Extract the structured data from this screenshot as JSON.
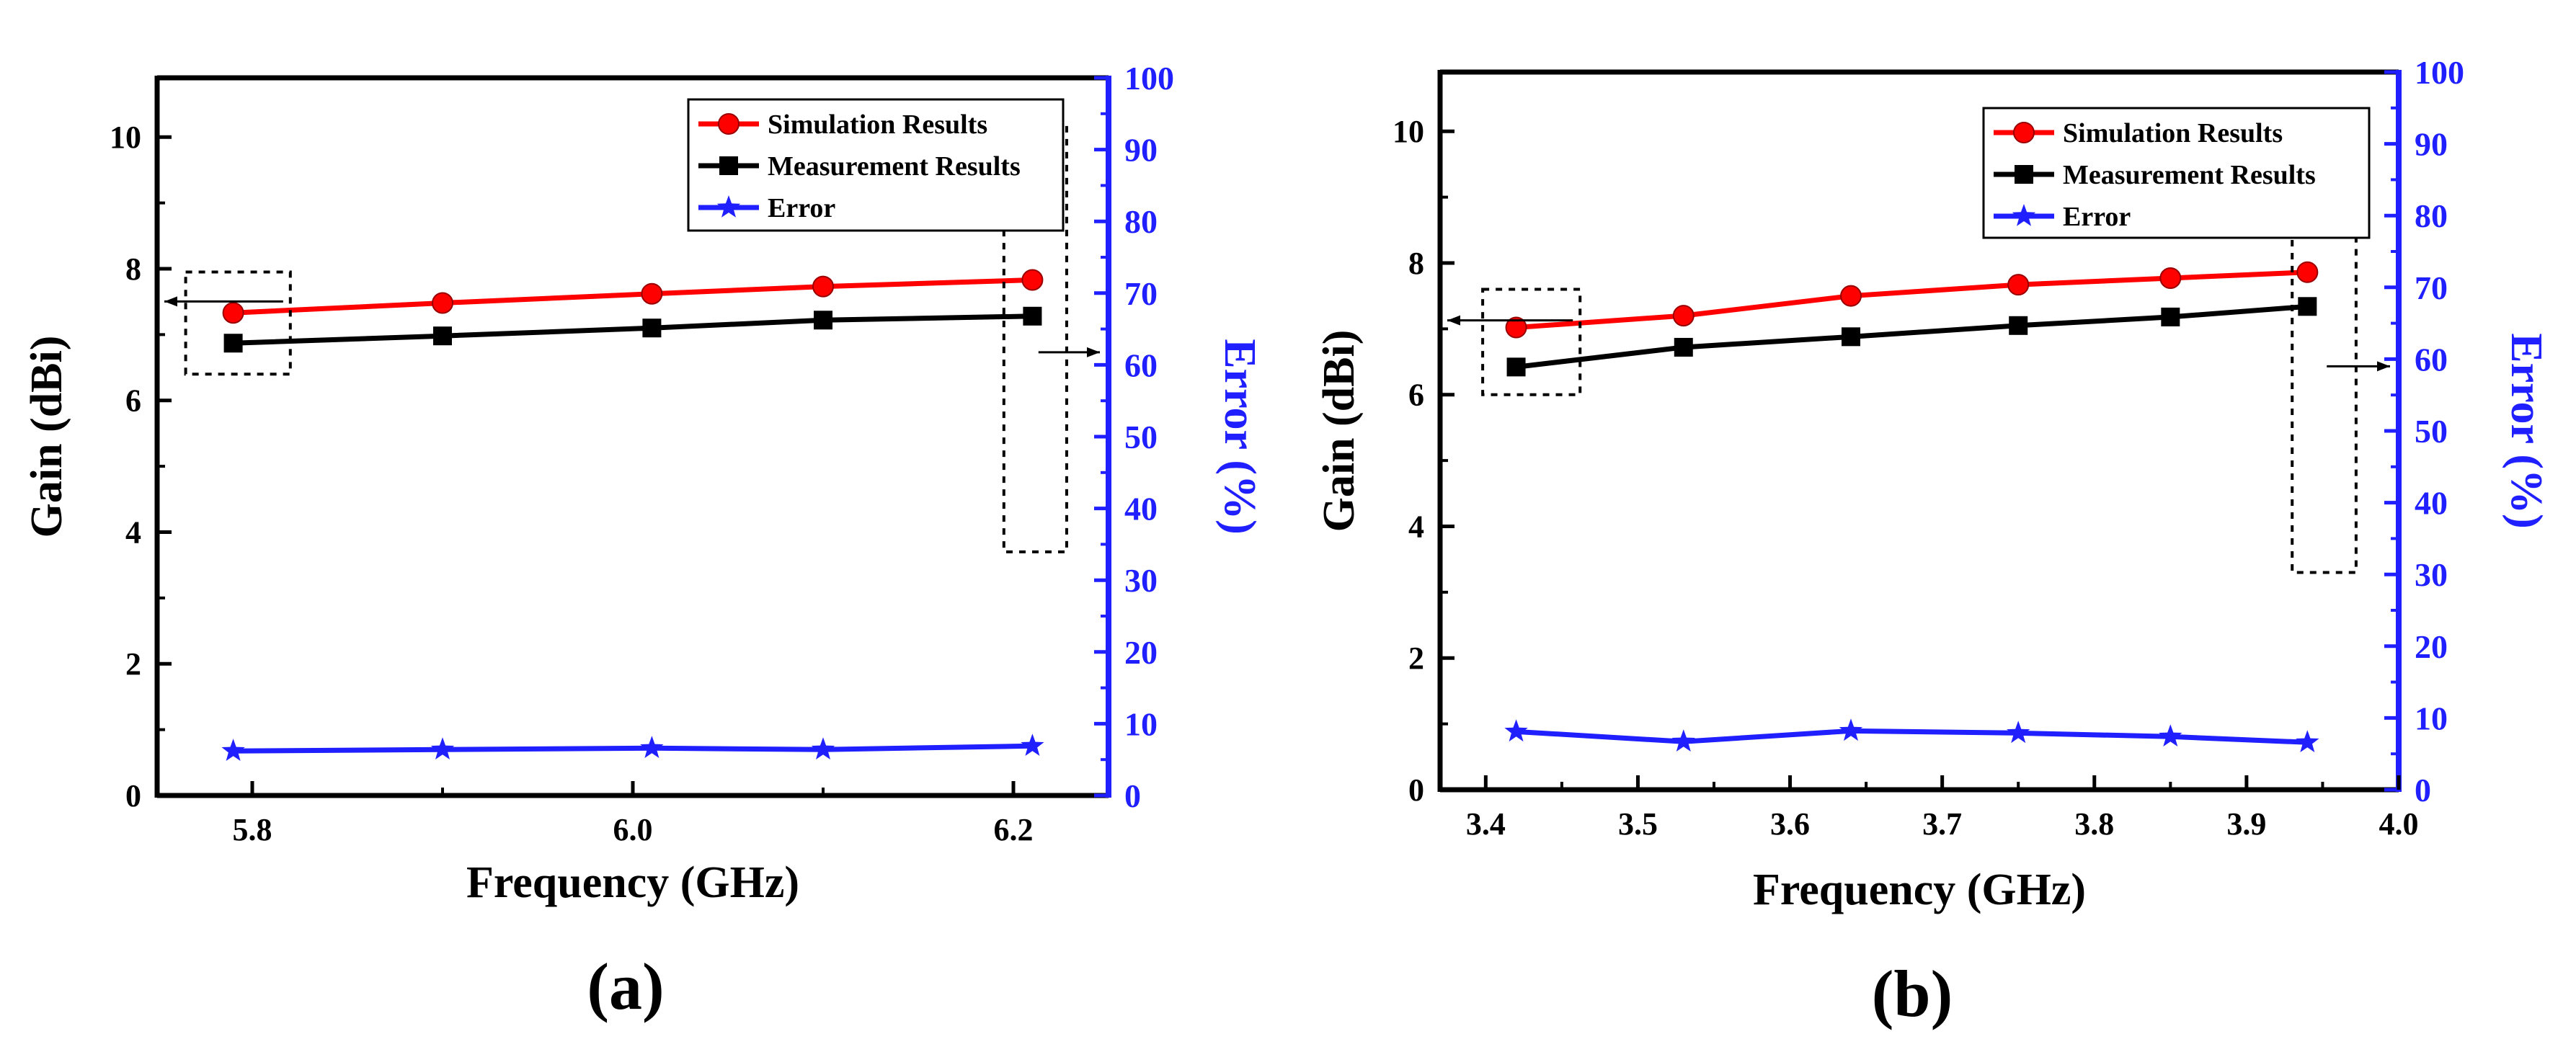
{
  "chart_data": [
    {
      "type": "line",
      "panel_label": "(a)",
      "xlabel": "Frequency (GHz)",
      "ylabel": "Gain (dBi)",
      "y2label": "Error (%)",
      "xlim": [
        5.75,
        6.25
      ],
      "ylim": [
        0,
        10.9
      ],
      "y2lim": [
        0,
        100
      ],
      "xticks": [
        5.8,
        6.0,
        6.2
      ],
      "xtick_labels": [
        "5.8",
        "6.0",
        "6.2"
      ],
      "yticks": [
        0,
        2,
        4,
        6,
        8,
        10
      ],
      "ytick_labels": [
        "0",
        "2",
        "4",
        "6",
        "8",
        "10"
      ],
      "y2ticks": [
        0,
        10,
        20,
        30,
        40,
        50,
        60,
        70,
        80,
        90,
        100
      ],
      "y2tick_labels": [
        "0",
        "10",
        "20",
        "30",
        "40",
        "50",
        "60",
        "70",
        "80",
        "90",
        "100"
      ],
      "legend_position": "top-right",
      "series": [
        {
          "name": "Simulation Results",
          "axis": "left",
          "marker": "circle",
          "color": "#ff0000",
          "x": [
            5.79,
            5.9,
            6.01,
            6.1,
            6.21
          ],
          "values": [
            7.33,
            7.48,
            7.62,
            7.73,
            7.83
          ]
        },
        {
          "name": "Measurement Results",
          "axis": "left",
          "marker": "square",
          "color": "#000000",
          "x": [
            5.79,
            5.9,
            6.01,
            6.1,
            6.21
          ],
          "values": [
            6.87,
            6.98,
            7.1,
            7.22,
            7.28
          ]
        },
        {
          "name": "Error",
          "axis": "right",
          "marker": "star",
          "color": "#1f1fff",
          "x": [
            5.79,
            5.9,
            6.01,
            6.1,
            6.21
          ],
          "values": [
            6.2,
            6.4,
            6.6,
            6.4,
            6.9
          ]
        }
      ],
      "annotations": [
        {
          "kind": "dashed-box-arrow",
          "target": "gain",
          "direction": "left",
          "x_range": [
            5.765,
            5.82
          ],
          "y_range": [
            6.4,
            7.95
          ]
        },
        {
          "kind": "dashed-box-arrow",
          "target": "error",
          "direction": "right",
          "x_range": [
            6.195,
            6.228
          ],
          "y_range": [
            3.7,
            10.2
          ]
        }
      ]
    },
    {
      "type": "line",
      "panel_label": "(b)",
      "xlabel": "Frequency (GHz)",
      "ylabel": "Gain (dBi)",
      "y2label": "Error (%)",
      "xlim": [
        3.37,
        4.0
      ],
      "ylim": [
        0,
        10.9
      ],
      "y2lim": [
        0,
        100
      ],
      "xticks": [
        3.4,
        3.5,
        3.6,
        3.7,
        3.8,
        3.9,
        4.0
      ],
      "xtick_labels": [
        "3.4",
        "3.5",
        "3.6",
        "3.7",
        "3.8",
        "3.9",
        "4.0"
      ],
      "yticks": [
        0,
        2,
        4,
        6,
        8,
        10
      ],
      "ytick_labels": [
        "0",
        "2",
        "4",
        "6",
        "8",
        "10"
      ],
      "y2ticks": [
        0,
        10,
        20,
        30,
        40,
        50,
        60,
        70,
        80,
        90,
        100
      ],
      "y2tick_labels": [
        "0",
        "10",
        "20",
        "30",
        "40",
        "50",
        "60",
        "70",
        "80",
        "90",
        "100"
      ],
      "legend_position": "top-right",
      "series": [
        {
          "name": "Simulation Results",
          "axis": "left",
          "marker": "circle",
          "color": "#ff0000",
          "x": [
            3.42,
            3.53,
            3.64,
            3.75,
            3.85,
            3.94
          ],
          "values": [
            7.02,
            7.2,
            7.5,
            7.67,
            7.77,
            7.86
          ]
        },
        {
          "name": "Measurement Results",
          "axis": "left",
          "marker": "square",
          "color": "#000000",
          "x": [
            3.42,
            3.53,
            3.64,
            3.75,
            3.85,
            3.94
          ],
          "values": [
            6.42,
            6.72,
            6.88,
            7.05,
            7.18,
            7.34
          ]
        },
        {
          "name": "Error",
          "axis": "right",
          "marker": "star",
          "color": "#1f1fff",
          "x": [
            3.42,
            3.53,
            3.64,
            3.75,
            3.85,
            3.94
          ],
          "values": [
            8.1,
            6.7,
            8.2,
            7.9,
            7.4,
            6.6
          ]
        }
      ],
      "annotations": [
        {
          "kind": "dashed-box-arrow",
          "target": "gain",
          "direction": "left",
          "x_range": [
            3.398,
            3.462
          ],
          "y_range": [
            6.0,
            7.6
          ]
        },
        {
          "kind": "dashed-box-arrow",
          "target": "error",
          "direction": "right",
          "x_range": [
            3.93,
            3.972
          ],
          "y_range": [
            3.3,
            10.0
          ]
        }
      ]
    }
  ]
}
